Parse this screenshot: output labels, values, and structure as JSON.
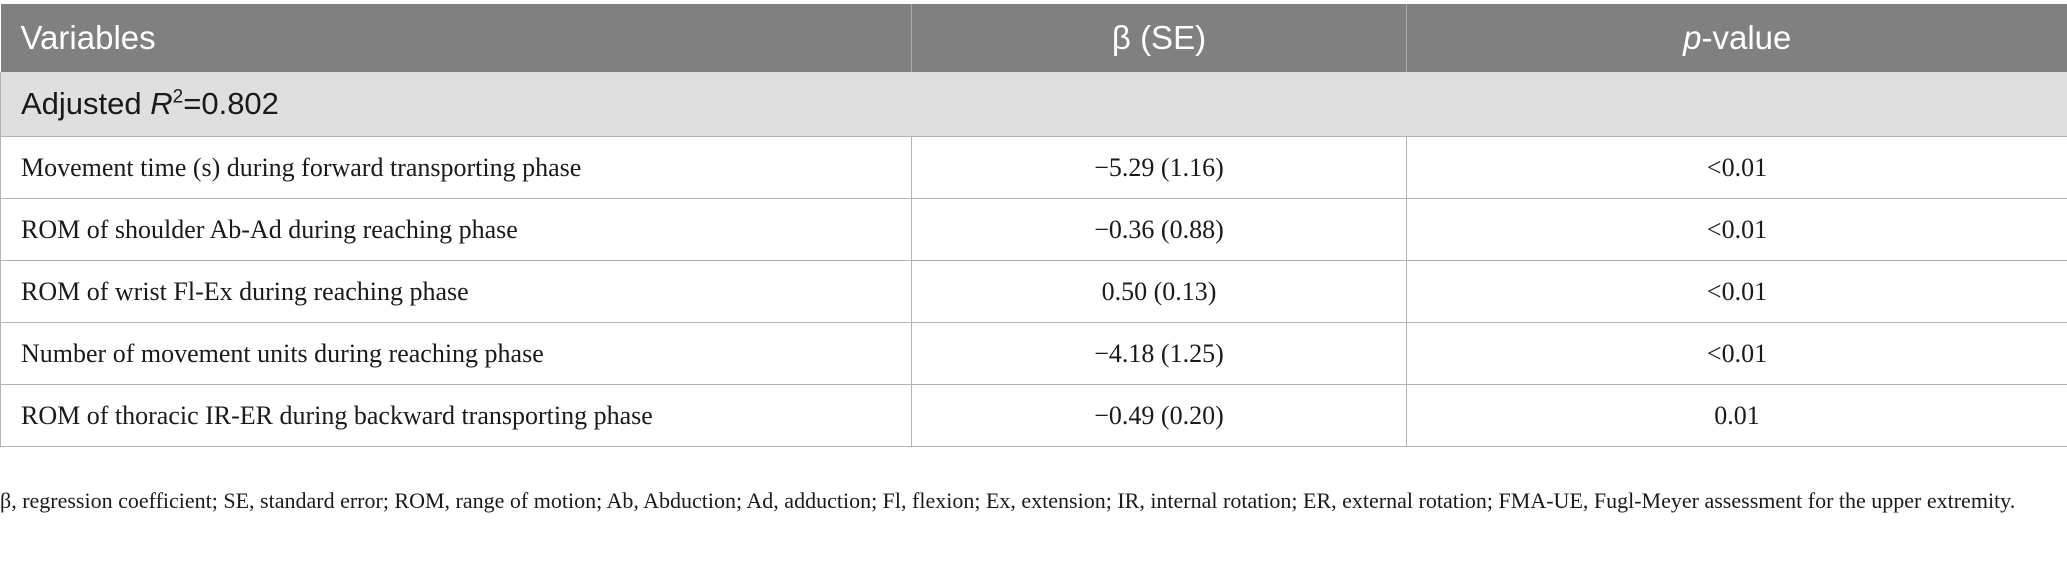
{
  "table": {
    "headers": {
      "variables": "Variables",
      "beta": "β (SE)",
      "p_italic": "p",
      "p_rest": "-value"
    },
    "group": {
      "prefix": "Adjusted ",
      "r": "R",
      "sup": "2",
      "value": "=0.802"
    },
    "rows": [
      {
        "variable": "Movement time (s) during forward transporting phase",
        "beta": "−5.29 (1.16)",
        "p": "<0.01"
      },
      {
        "variable": "ROM of shoulder Ab-Ad during reaching phase",
        "beta": "−0.36 (0.88)",
        "p": "<0.01"
      },
      {
        "variable": "ROM of wrist Fl-Ex during reaching phase",
        "beta": "0.50 (0.13)",
        "p": "<0.01"
      },
      {
        "variable": "Number of movement units during reaching phase",
        "beta": "−4.18 (1.25)",
        "p": "<0.01"
      },
      {
        "variable": "ROM of thoracic IR-ER during backward transporting phase",
        "beta": "−0.49 (0.20)",
        "p": "0.01"
      }
    ]
  },
  "footnote": "β, regression coefficient; SE, standard error; ROM, range of motion; Ab, Abduction; Ad, adduction; Fl, flexion; Ex, extension; IR, internal rotation; ER, external rotation; FMA-UE, Fugl-Meyer assessment for the upper extremity.",
  "colors": {
    "header_bg": "#7f807f",
    "group_bg": "#e0dfe0",
    "border": "#b4b4b4"
  }
}
